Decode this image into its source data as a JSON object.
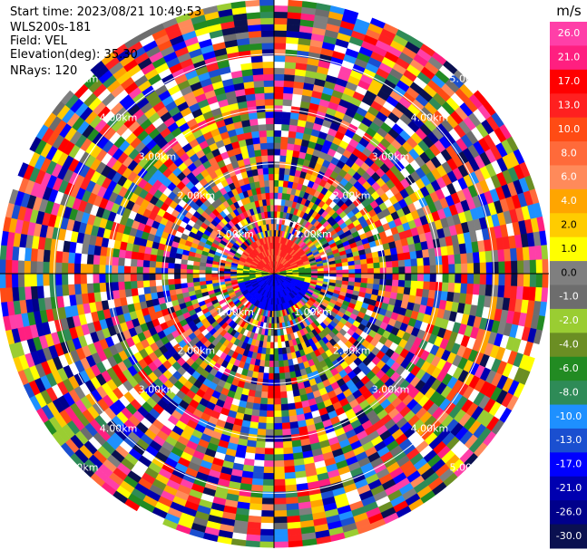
{
  "header": {
    "start_time": "Start time: 2023/08/21 10:49:53",
    "instrument": "WLS200s-181",
    "field": "Field: VEL",
    "elevation": "Elevation(deg): 35.30",
    "nrays": "NRays: 120"
  },
  "colorbar": {
    "unit": "m/s",
    "ticks": [
      "26.0",
      "21.0",
      "17.0",
      "13.0",
      "10.0",
      "8.0",
      "6.0",
      "4.0",
      "2.0",
      "1.0",
      "0.0",
      "-1.0",
      "-2.0",
      "-4.0",
      "-6.0",
      "-8.0",
      "-10.0",
      "-13.0",
      "-17.0",
      "-21.0",
      "-26.0",
      "-30.0"
    ],
    "colors": [
      "#ff3fa8",
      "#ff1f80",
      "#ff0000",
      "#ff2020",
      "#ff4b14",
      "#ff6a3a",
      "#ff8a5a",
      "#ffa500",
      "#ffcc00",
      "#ffff00",
      "#7f7f7f",
      "#6d6d6d",
      "#9acd32",
      "#6b8e23",
      "#228b22",
      "#2e8b57",
      "#1e90ff",
      "#1a4fd0",
      "#0000ff",
      "#0000b0",
      "#00008b",
      "#0a1050"
    ]
  },
  "chart_data": {
    "type": "ppi-scan",
    "field": "VEL",
    "unit": "m/s",
    "n_rays": 120,
    "elevation_deg": 35.3,
    "range_ring_labels": [
      "1.00km",
      "2.00km",
      "3.00km",
      "4.00km",
      "5.00km"
    ],
    "range_ring_km": [
      1,
      2,
      3,
      4,
      5
    ],
    "max_range_km": 5.0,
    "value_range": [
      -30.0,
      26.0
    ]
  }
}
